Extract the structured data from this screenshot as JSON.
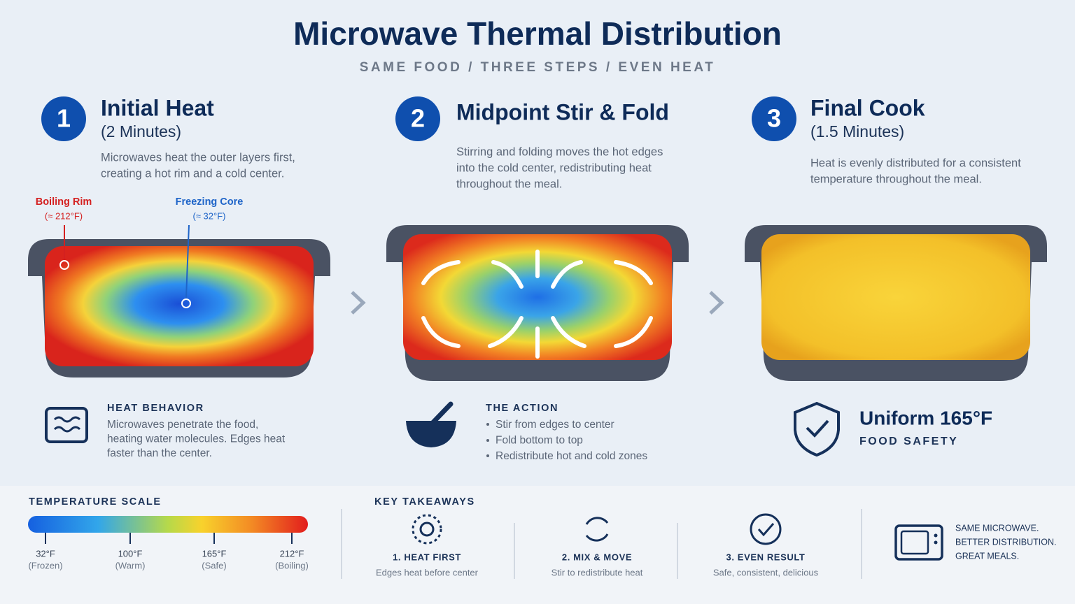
{
  "header": {
    "title": "Microwave Thermal Distribution",
    "subtitle": "SAME FOOD / THREE STEPS / EVEN HEAT"
  },
  "steps": [
    {
      "number": "1",
      "title": "Initial Heat",
      "subtitle": "(2 Minutes)",
      "description": [
        "Microwaves heat the outer layers first,",
        "creating a hot rim and a cold center."
      ],
      "callouts": [
        {
          "label": "Boiling Rim",
          "value": "(≈ 212°F)"
        },
        {
          "label": "Freezing Core",
          "value": "(≈ 32°F)"
        }
      ],
      "info": {
        "heading": "HEAT BEHAVIOR",
        "lines": [
          "Microwaves penetrate the food,",
          "heating water molecules. Edges heat",
          "faster than the center."
        ]
      }
    },
    {
      "number": "2",
      "title": "Midpoint Stir & Fold",
      "description": [
        "Stirring and folding moves the hot edges",
        "into the cold center, redistributing heat",
        "throughout the meal."
      ],
      "info": {
        "heading": "THE ACTION",
        "bullets": [
          "Stir from edges to center",
          "Fold bottom to top",
          "Redistribute hot and cold zones"
        ]
      }
    },
    {
      "number": "3",
      "title": "Final Cook",
      "subtitle": "(1.5 Minutes)",
      "description": [
        "Heat is evenly distributed for a consistent",
        "temperature throughout the meal."
      ],
      "info": {
        "heading": "Uniform 165°F",
        "subheading": "FOOD SAFETY"
      }
    }
  ],
  "temperature_scale": {
    "title": "TEMPERATURE SCALE",
    "ticks": [
      {
        "label": "32°F",
        "note": "(Frozen)"
      },
      {
        "label": "100°F",
        "note": "(Warm)"
      },
      {
        "label": "165°F",
        "note": "(Safe)"
      },
      {
        "label": "212°F",
        "note": "(Boiling)"
      }
    ]
  },
  "takeaways": {
    "title": "KEY TAKEAWAYS",
    "items": [
      {
        "title": "1. HEAT FIRST",
        "text": "Edges heat before center"
      },
      {
        "title": "2. MIX & MOVE",
        "text": "Stir to redistribute heat"
      },
      {
        "title": "3. EVEN RESULT",
        "text": "Safe, consistent, delicious"
      }
    ]
  },
  "footer_note": [
    "SAME MICROWAVE.",
    "BETTER DISTRIBUTION.",
    "GREAT MEALS."
  ]
}
